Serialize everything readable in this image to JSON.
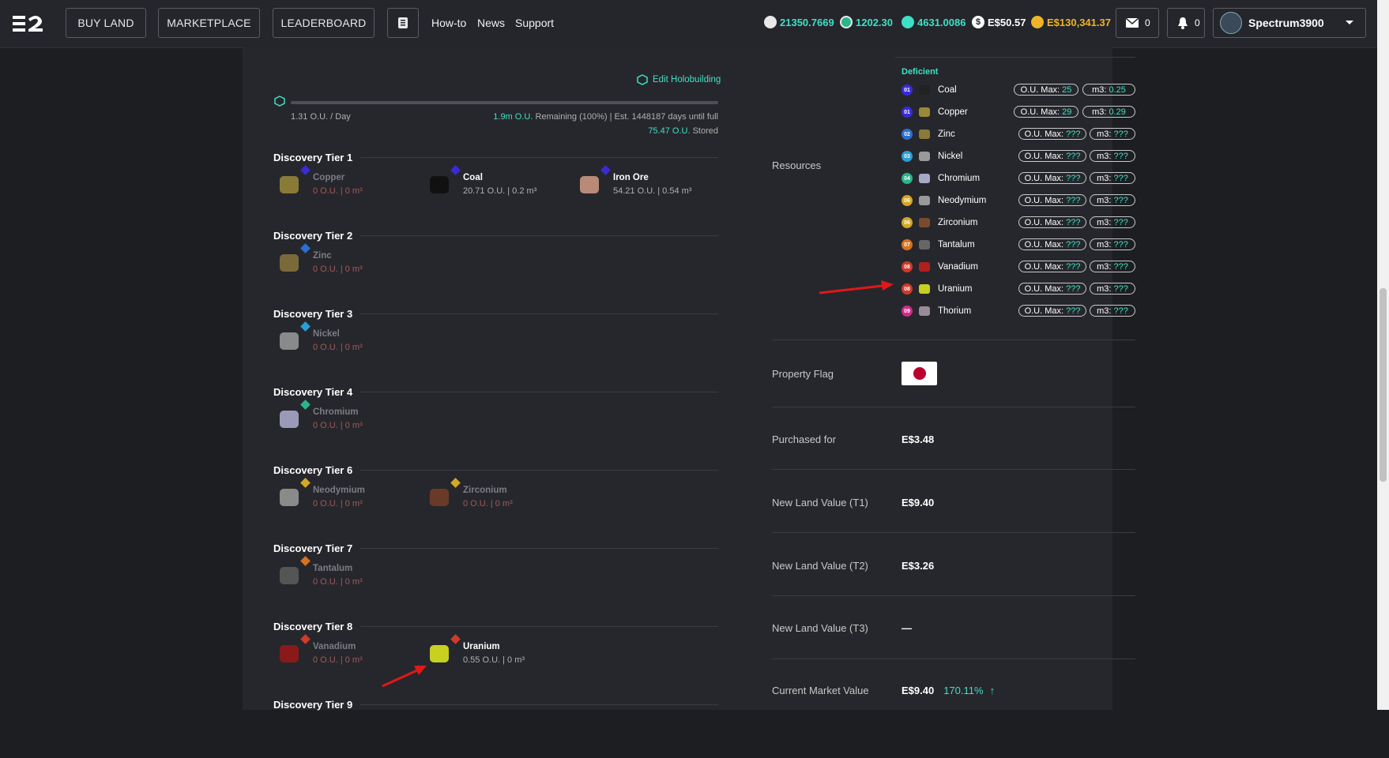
{
  "nav": {
    "buy_land": "BUY LAND",
    "marketplace": "MARKETPLACE",
    "leaderboard": "LEADERBOARD",
    "howto": "How-to",
    "news": "News",
    "support": "Support"
  },
  "balances": [
    {
      "icon": "t1-token-icon",
      "value": "21350.7669",
      "color": "#3fe0c5"
    },
    {
      "icon": "ecash-icon",
      "value": "1202.30",
      "color": "#3fe0c5"
    },
    {
      "icon": "essence-icon",
      "value": "4631.0086",
      "color": "#3fe0c5"
    },
    {
      "icon": "dollar-icon",
      "value": "E$50.57",
      "color": "#ffffff"
    },
    {
      "icon": "coin-icon",
      "value": "E$130,341.37",
      "color": "#f0b429"
    }
  ],
  "mail_count": "0",
  "notif_count": "0",
  "user": {
    "name": "Spectrum3900"
  },
  "holo": {
    "edit_label": "Edit Holobuilding",
    "rate": "1.31 O.U. / Day",
    "remaining_value": "1.9m O.U.",
    "remaining_text": "Remaining (100%) | Est. 1448187 days until full",
    "stored_value": "75.47 O.U.",
    "stored_text": "Stored"
  },
  "tiers": [
    {
      "title": "Discovery Tier 1",
      "items": [
        {
          "name": "Copper",
          "vals": "0 O.U. | 0 m³",
          "dim": true,
          "badge": "#3a2ad8",
          "img": "#8a7a38"
        },
        {
          "name": "Coal",
          "vals": "20.71 O.U. | 0.2 m³",
          "dim": false,
          "badge": "#3a2ad8",
          "img": "#111111"
        },
        {
          "name": "Iron Ore",
          "vals": "54.21 O.U. | 0.54 m³",
          "dim": false,
          "badge": "#3a2ad8",
          "img": "#b98a78"
        }
      ]
    },
    {
      "title": "Discovery Tier 2",
      "items": [
        {
          "name": "Zinc",
          "vals": "0 O.U. | 0 m³",
          "dim": true,
          "badge": "#2b6fd0",
          "img": "#7a6a3a"
        }
      ]
    },
    {
      "title": "Discovery Tier 3",
      "items": [
        {
          "name": "Nickel",
          "vals": "0 O.U. | 0 m³",
          "dim": true,
          "badge": "#2a9ed6",
          "img": "#8a8a8a"
        }
      ]
    },
    {
      "title": "Discovery Tier 4",
      "items": [
        {
          "name": "Chromium",
          "vals": "0 O.U. | 0 m³",
          "dim": true,
          "badge": "#2ab58a",
          "img": "#9a9ab8"
        }
      ]
    },
    {
      "title": "Discovery Tier 6",
      "items": [
        {
          "name": "Neodymium",
          "vals": "0 O.U. | 0 m³",
          "dim": true,
          "badge": "#d4a820",
          "img": "#8a8a8a"
        },
        {
          "name": "Zirconium",
          "vals": "0 O.U. | 0 m³",
          "dim": true,
          "badge": "#d4a820",
          "img": "#6a3a28"
        }
      ]
    },
    {
      "title": "Discovery Tier 7",
      "items": [
        {
          "name": "Tantalum",
          "vals": "0 O.U. | 0 m³",
          "dim": true,
          "badge": "#d8721c",
          "img": "#555555"
        }
      ]
    },
    {
      "title": "Discovery Tier 8",
      "items": [
        {
          "name": "Vanadium",
          "vals": "0 O.U. | 0 m³",
          "dim": true,
          "badge": "#d03a2a",
          "img": "#8a1a1a"
        },
        {
          "name": "Uranium",
          "vals": "0.55 O.U. | 0 m³",
          "dim": false,
          "badge": "#d03a2a",
          "img": "#c8d020"
        }
      ]
    },
    {
      "title": "Discovery Tier 9",
      "items": []
    }
  ],
  "resources": {
    "label": "Resources",
    "deficient_label": "Deficient",
    "max_prefix": "O.U. Max:",
    "m3_prefix": "m3:",
    "rows": [
      {
        "tier": "01",
        "tier_color": "#3a2ad8",
        "name": "Coal",
        "max": "25",
        "m3": "0.25",
        "img": "#222222"
      },
      {
        "tier": "01",
        "tier_color": "#3a2ad8",
        "name": "Copper",
        "max": "29",
        "m3": "0.29",
        "img": "#9a8a38"
      },
      {
        "tier": "02",
        "tier_color": "#2b6fd0",
        "name": "Zinc",
        "max": "???",
        "m3": "???",
        "img": "#8a7a3a"
      },
      {
        "tier": "03",
        "tier_color": "#2a9ed6",
        "name": "Nickel",
        "max": "???",
        "m3": "???",
        "img": "#9a9a9a"
      },
      {
        "tier": "04",
        "tier_color": "#2ab58a",
        "name": "Chromium",
        "max": "???",
        "m3": "???",
        "img": "#a8a8c8"
      },
      {
        "tier": "06",
        "tier_color": "#d4a820",
        "name": "Neodymium",
        "max": "???",
        "m3": "???",
        "img": "#9a9a9a"
      },
      {
        "tier": "06",
        "tier_color": "#d4a820",
        "name": "Zirconium",
        "max": "???",
        "m3": "???",
        "img": "#7a4a30"
      },
      {
        "tier": "07",
        "tier_color": "#d8721c",
        "name": "Tantalum",
        "max": "???",
        "m3": "???",
        "img": "#666666"
      },
      {
        "tier": "08",
        "tier_color": "#d03a2a",
        "name": "Vanadium",
        "max": "???",
        "m3": "???",
        "img": "#b02020"
      },
      {
        "tier": "08",
        "tier_color": "#d03a2a",
        "name": "Uranium",
        "max": "???",
        "m3": "???",
        "img": "#c8d020"
      },
      {
        "tier": "09",
        "tier_color": "#d02a8a",
        "name": "Thorium",
        "max": "???",
        "m3": "???",
        "img": "#9a8a9a"
      }
    ]
  },
  "props": [
    {
      "label": "Property Flag",
      "value": ""
    },
    {
      "label": "Purchased for",
      "value": "E$3.48"
    },
    {
      "label": "New Land Value (T1)",
      "value": "E$9.40"
    },
    {
      "label": "New Land Value (T2)",
      "value": "E$3.26"
    },
    {
      "label": "New Land Value (T3)",
      "value": "—"
    },
    {
      "label": "Current Market Value",
      "value": "E$9.40",
      "change": "170.11%"
    }
  ]
}
